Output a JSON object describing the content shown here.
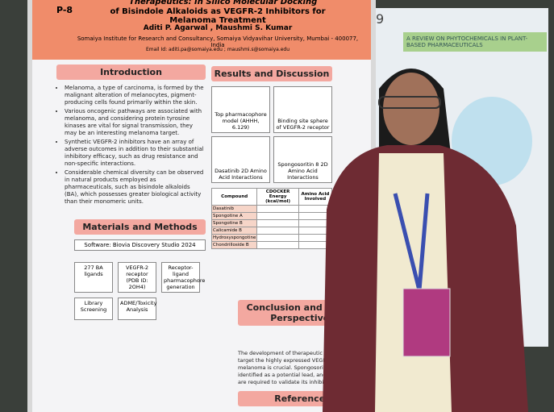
{
  "poster": {
    "code": "P-8",
    "title_line1": "Therapeutics: In Silico Molecular Docking",
    "title_line2": "of Bisindole Alkaloids as VEGFR-2 Inhibitors for Melanoma Treatment",
    "authors": "Aditi P. Agarwal , Maushmi S. Kumar",
    "affiliation": "Somaiya Institute for Research and Consultancy, Somaiya Vidyavihar University, Mumbai - 400077, India",
    "email": "Email Id: aditi.pa@somaiya.edu ; maushmi.s@somaiya.edu",
    "introduction": {
      "heading": "Introduction",
      "bullets": [
        "Melanoma, a type of carcinoma, is formed by the malignant alteration of melanocytes, pigment-producing cells found primarily within the skin.",
        "Various oncogenic pathways are associated with melanoma, and considering protein tyrosine kinases are vital for signal transmission, they may be an interesting melanoma target.",
        "Synthetic VEGFR-2 inhibitors have an array of adverse outcomes in addition to their substantial inhibitory efficacy, such as drug resistance and non-specific interactions.",
        "Considerable chemical diversity can be observed in natural products employed as pharmaceuticals, such as bisindole alkaloids (BA), which possesses greater biological activity than their monomeric units."
      ]
    },
    "methods": {
      "heading": "Materials and Methods",
      "software": "Software: Biovia Discovery Studio 2024",
      "steps": [
        "277 BA ligands",
        "VEGFR-2 receptor (PDB ID: 2OH4)",
        "Receptor-ligand pharmacophore generation",
        "Library Screening",
        "ADME/Toxicity Analysis"
      ]
    },
    "results": {
      "heading": "Results and Discussion",
      "captions": [
        "Top pharmacophore model (AHHH, 6.129)",
        "Binding site sphere of VEGFR-2 receptor",
        "Dasatinib 2D Amino Acid Interactions",
        "Spongosoritin 8 2D Amino Acid Interactions"
      ],
      "table_headers": [
        "Compound",
        "CDOCKER Energy (kcal/mol)",
        "Amino Acid Involved"
      ],
      "compounds": [
        "Dasatinib",
        "Spongotine A",
        "Spongotine B",
        "Calicamide B",
        "Hydroxyspongotine",
        "Chondrilloside B"
      ]
    },
    "conclusion": {
      "heading": "Conclusion and Future Perspectives",
      "text": "The development of therapeutic strategies that target the highly expressed VEGFR-2 kinase in melanoma is crucial. Spongosoritin 8 was identified as a potential lead, and further studies are required to validate its inhibitory activity."
    },
    "references_heading": "References",
    "neighbor_number": "9",
    "neighbor_title": "A REVIEW ON PHYTOCHEMICALS IN PLANT-BASED PHARMACEUTICALS"
  }
}
